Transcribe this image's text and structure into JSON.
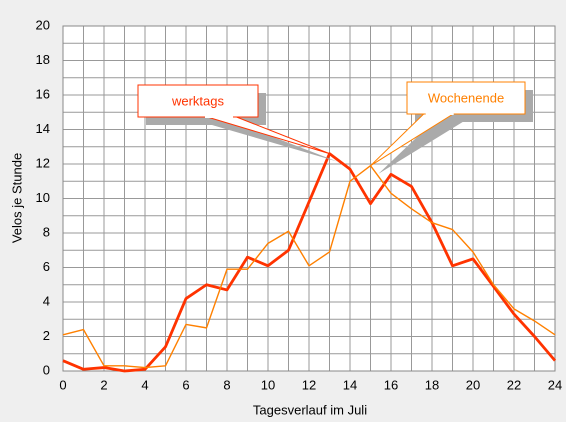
{
  "chart_data": {
    "type": "line",
    "x_label": "Tagesverlauf im Juli",
    "y_label": "Velos je Stunde",
    "x": [
      0,
      1,
      2,
      3,
      4,
      5,
      6,
      7,
      8,
      9,
      10,
      11,
      12,
      13,
      14,
      15,
      16,
      17,
      18,
      19,
      20,
      21,
      22,
      23,
      24
    ],
    "series": [
      {
        "name": "werktags",
        "color": "#ff3300",
        "values": [
          0.6,
          0.1,
          0.2,
          0.0,
          0.1,
          1.4,
          4.2,
          5.0,
          4.7,
          6.6,
          6.1,
          7.0,
          9.8,
          12.6,
          11.7,
          9.7,
          11.4,
          10.7,
          8.6,
          6.1,
          6.5,
          4.9,
          3.3,
          2.0,
          0.6
        ]
      },
      {
        "name": "Wochenende",
        "color": "#ff8000",
        "values": [
          2.1,
          2.4,
          0.3,
          0.3,
          0.2,
          0.3,
          2.7,
          2.5,
          5.9,
          5.9,
          7.4,
          8.1,
          6.1,
          6.9,
          11.0,
          11.9,
          10.3,
          9.4,
          8.6,
          8.2,
          6.9,
          5.0,
          3.6,
          2.9,
          2.1
        ]
      }
    ],
    "xlim": [
      0,
      24
    ],
    "ylim": [
      0,
      20
    ],
    "xticks": [
      0,
      2,
      4,
      6,
      8,
      10,
      12,
      14,
      16,
      18,
      20,
      22,
      24
    ],
    "yticks": [
      0,
      2,
      4,
      6,
      8,
      10,
      12,
      14,
      16,
      18,
      20
    ],
    "xgrid": [
      0,
      1,
      2,
      3,
      4,
      5,
      6,
      7,
      8,
      9,
      10,
      11,
      12,
      13,
      14,
      15,
      16,
      17,
      18,
      19,
      20,
      21,
      22,
      23,
      24
    ],
    "ygrid": [
      0,
      1,
      2,
      3,
      4,
      5,
      6,
      7,
      8,
      9,
      10,
      11,
      12,
      13,
      14,
      15,
      16,
      17,
      18,
      19,
      20
    ],
    "grid": true
  }
}
